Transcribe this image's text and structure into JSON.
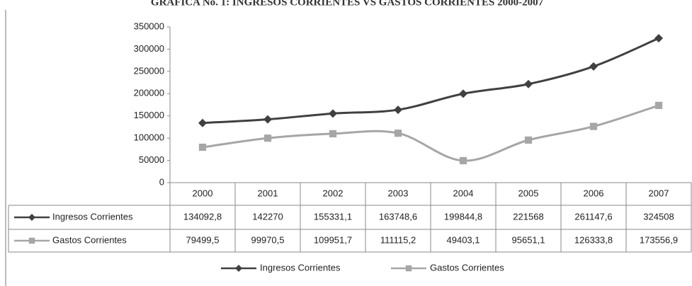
{
  "chart_data": {
    "type": "line",
    "title": "GRÁFICA No. 1: INGRESOS CORRIENTES VS GASTOS CORRIENTES 2000-2007",
    "categories": [
      "2000",
      "2001",
      "2002",
      "2003",
      "2004",
      "2005",
      "2006",
      "2007"
    ],
    "series": [
      {
        "name": "Ingresos Corrientes",
        "color": "#404040",
        "marker": "diamond",
        "values": [
          134092.8,
          142270,
          155331.1,
          163748.6,
          199844.8,
          221568,
          261147.6,
          324508
        ],
        "value_labels": [
          "134092,8",
          "142270",
          "155331,1",
          "163748,6",
          "199844,8",
          "221568",
          "261147,6",
          "324508"
        ]
      },
      {
        "name": "Gastos Corrientes",
        "color": "#a6a6a6",
        "marker": "square",
        "values": [
          79499.5,
          99970.5,
          109951.7,
          111115.2,
          49403.1,
          95651.1,
          126333.8,
          173556.9
        ],
        "value_labels": [
          "79499,5",
          "99970,5",
          "109951,7",
          "111115,2",
          "49403,1",
          "95651,1",
          "126333,8",
          "173556,9"
        ]
      }
    ],
    "ylim": [
      0,
      350000
    ],
    "yticks": [
      0,
      50000,
      100000,
      150000,
      200000,
      250000,
      300000,
      350000
    ],
    "grid": false,
    "smooth": true,
    "legend": "bottom"
  }
}
